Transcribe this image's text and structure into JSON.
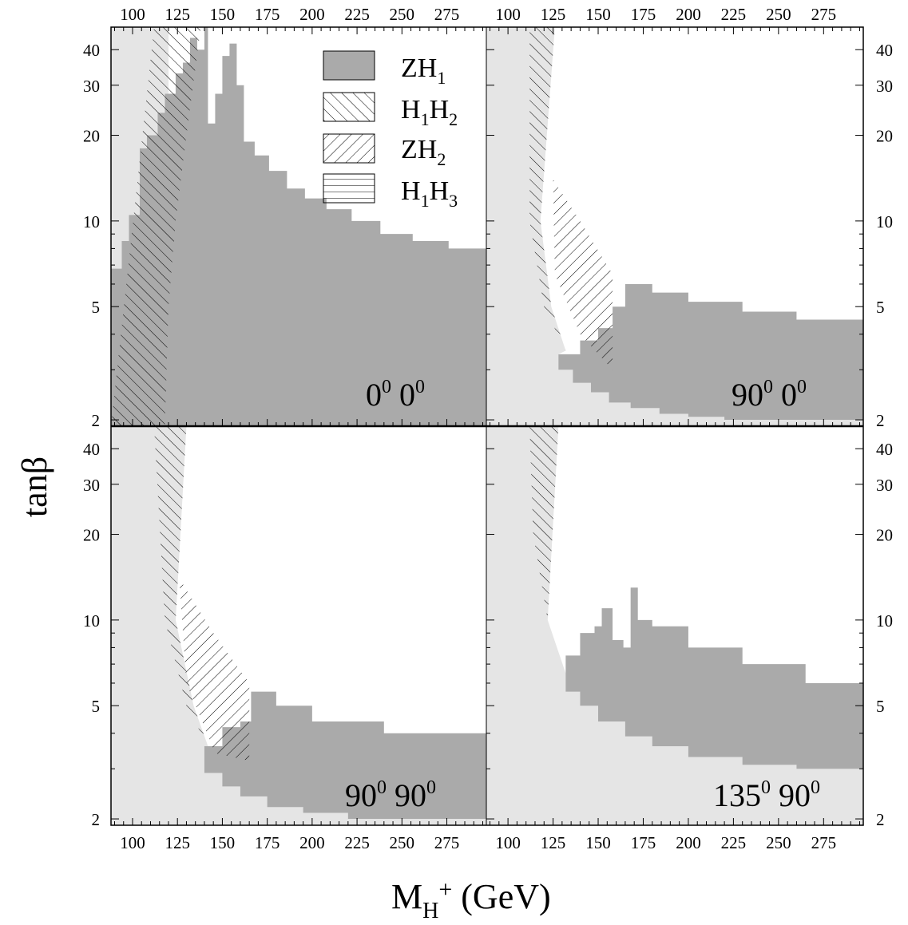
{
  "chart_data": {
    "type": "area",
    "layout": "2x2 panels",
    "xlabel": "M_H+ (GeV)",
    "ylabel": "tanβ",
    "xlim": [
      88,
      297
    ],
    "ylim": [
      1.9,
      48
    ],
    "yscale": "log",
    "x_ticks": [
      100,
      125,
      150,
      175,
      200,
      225,
      250,
      275
    ],
    "y_ticks": [
      2,
      5,
      10,
      20,
      30,
      40
    ],
    "legend": {
      "position": "top-left panel, upper right",
      "entries": [
        {
          "label": "ZH1",
          "main": "ZH",
          "sub": "1",
          "style": "solid-grey"
        },
        {
          "label": "H1H2",
          "parts": [
            {
              "t": "H",
              "s": "1"
            },
            {
              "t": "H",
              "s": "2"
            }
          ],
          "style": "hatch-forward"
        },
        {
          "label": "ZH2",
          "parts": [
            {
              "t": "ZH",
              "s": "2"
            }
          ],
          "style": "hatch-back"
        },
        {
          "label": "H1H3",
          "parts": [
            {
              "t": "H",
              "s": "1"
            },
            {
              "t": "H",
              "s": "3"
            }
          ],
          "style": "hatch-horizontal"
        }
      ]
    },
    "colors": {
      "theory_excluded": "#e5e5e5",
      "ZH1": "#aaaaaa",
      "hatch": "#000000"
    },
    "panels": [
      {
        "id": "top-left",
        "label": "0⁰ 0⁰",
        "label_parts": [
          "0",
          "0"
        ],
        "light_region": {
          "x": [
            88,
            120
          ],
          "y": [
            1.9,
            48
          ]
        },
        "ZH1_region": {
          "top_x": [
            88,
            94,
            98,
            104,
            108,
            114,
            118,
            124,
            128,
            132,
            136,
            140,
            142,
            146,
            150,
            154,
            158,
            162,
            168,
            176,
            186,
            196,
            208,
            222,
            238,
            256,
            276,
            297
          ],
          "top_y": [
            6.8,
            8.5,
            10.5,
            18,
            20,
            24,
            28,
            33,
            36,
            44,
            40,
            48,
            22,
            28,
            38,
            42,
            30,
            19,
            17,
            15,
            13,
            12,
            11,
            10,
            9,
            8.5,
            8,
            8
          ]
        },
        "H1H2_region": {
          "left_x": [
            88,
            112,
            116,
            118,
            120,
            122
          ],
          "left_y": [
            1.9,
            48,
            48,
            48,
            48,
            48
          ],
          "right_x": [
            122,
            138,
            130,
            124,
            120,
            118
          ],
          "right_y": [
            48,
            48,
            20,
            10,
            5,
            1.9
          ]
        }
      },
      {
        "id": "top-right",
        "label": "90⁰ 0⁰",
        "label_parts": [
          "90",
          "0"
        ],
        "ZH1_region": {
          "lower_x": [
            128,
            136,
            146,
            156,
            168,
            184,
            200,
            220,
            250,
            297
          ],
          "lower_y": [
            3.4,
            3.0,
            2.7,
            2.5,
            2.3,
            2.2,
            2.1,
            2.05,
            2.0,
            2.0
          ],
          "upper_x": [
            128,
            140,
            150,
            158,
            165,
            180,
            200,
            230,
            260,
            297
          ],
          "upper_y": [
            3.4,
            3.8,
            4.2,
            5.0,
            6.0,
            5.6,
            5.2,
            4.8,
            4.5,
            4.4
          ]
        },
        "H1H2_region": {
          "x": [
            112,
            126,
            118,
            124,
            132,
            120,
            112
          ],
          "y": [
            48,
            48,
            10,
            5,
            3.5,
            5,
            10
          ]
        },
        "ZH2_region": {
          "x": [
            125,
            140,
            158,
            158,
            140,
            126
          ],
          "y": [
            14,
            10,
            6.5,
            3.0,
            4.0,
            6.5
          ]
        }
      },
      {
        "id": "bottom-left",
        "label": "90⁰ 90⁰",
        "label_parts": [
          "90",
          "90"
        ],
        "ZH1_region": {
          "lower_x": [
            140,
            150,
            160,
            175,
            195,
            220,
            260,
            297
          ],
          "lower_y": [
            3.3,
            2.9,
            2.6,
            2.4,
            2.2,
            2.1,
            2.0,
            2.0
          ],
          "upper_x": [
            140,
            150,
            160,
            166,
            180,
            200,
            240,
            297
          ],
          "upper_y": [
            3.6,
            4.2,
            4.4,
            5.6,
            5.0,
            4.4,
            4.0,
            3.8
          ]
        },
        "H1H2_region": {
          "x": [
            112,
            130,
            124,
            134,
            142,
            130,
            118
          ],
          "y": [
            48,
            48,
            10,
            5,
            3.6,
            5,
            10
          ]
        },
        "ZH2_region": {
          "x": [
            126,
            145,
            165,
            165,
            146,
            130
          ],
          "y": [
            14,
            9,
            6.0,
            3.2,
            3.4,
            6.0
          ]
        }
      },
      {
        "id": "bottom-right",
        "label": "135⁰ 90⁰",
        "label_parts": [
          "135",
          "90"
        ],
        "ZH1_region": {
          "lower_x": [
            132,
            140,
            150,
            165,
            180,
            200,
            230,
            260,
            297
          ],
          "lower_y": [
            6.5,
            5.6,
            5.0,
            4.4,
            3.9,
            3.6,
            3.3,
            3.1,
            3.0
          ],
          "upper_x": [
            132,
            140,
            148,
            152,
            158,
            164,
            168,
            172,
            180,
            200,
            230,
            265,
            297
          ],
          "upper_y": [
            7.5,
            9.0,
            9.5,
            11.0,
            8.5,
            8.0,
            13.0,
            10.0,
            9.5,
            8.0,
            7.0,
            6.0,
            5.8
          ]
        },
        "H1H2_region": {
          "x": [
            112,
            128,
            122,
            130,
            122,
            114
          ],
          "y": [
            48,
            48,
            10,
            6.5,
            10,
            20
          ]
        }
      }
    ]
  }
}
